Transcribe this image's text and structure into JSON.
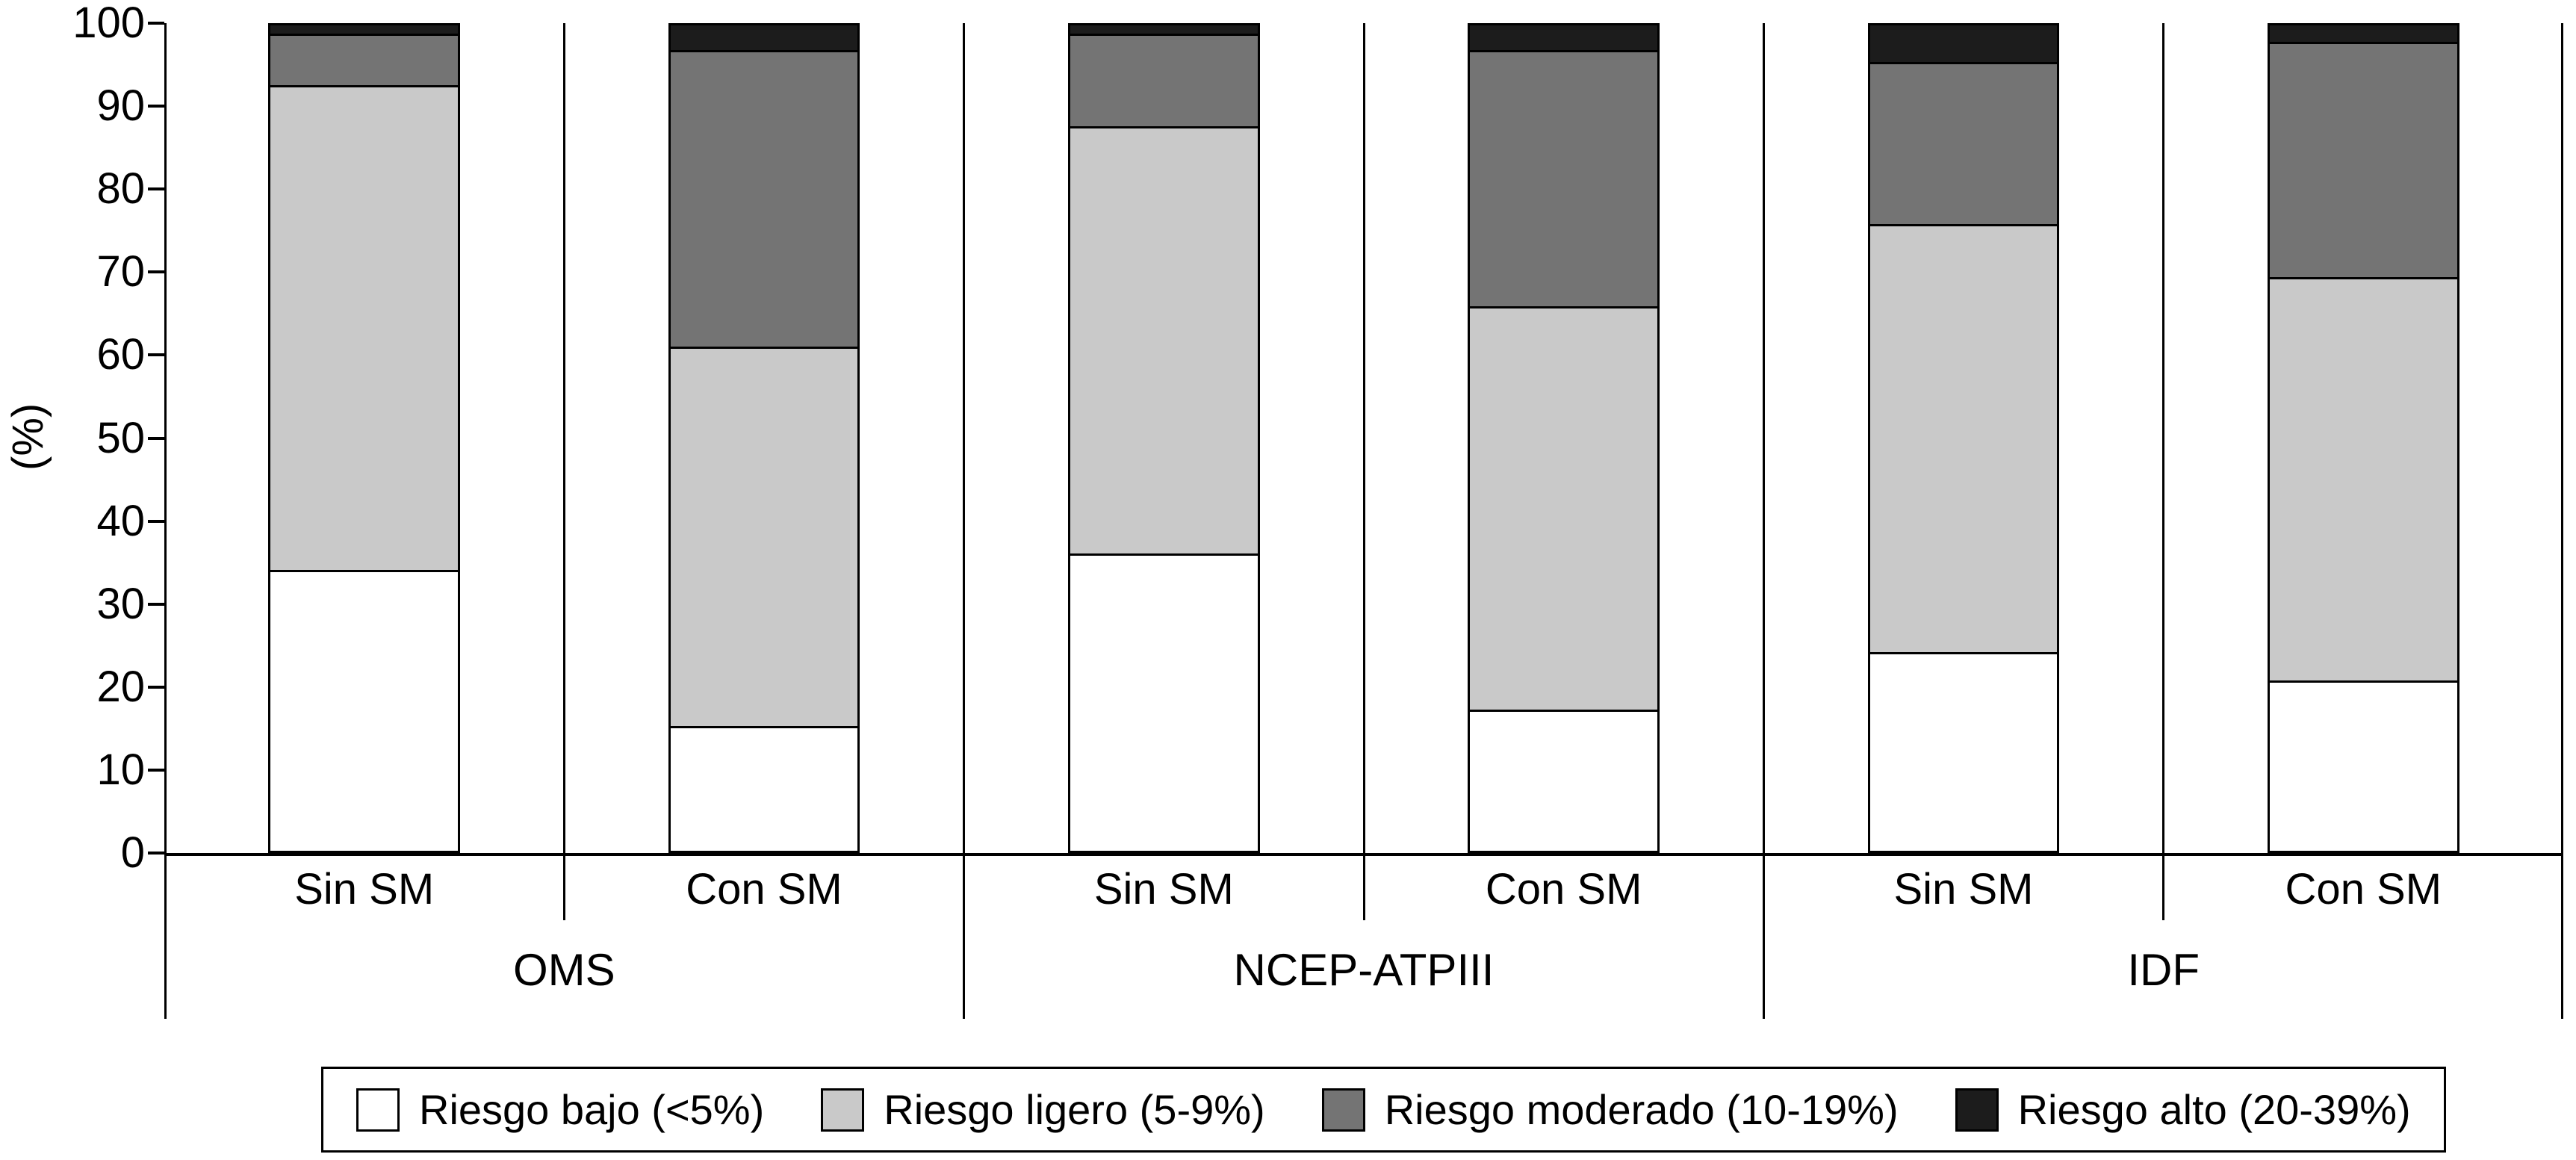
{
  "chart_data": {
    "type": "bar",
    "variant": "stacked-percent-column",
    "title": "",
    "ylabel": "(%)",
    "ylim": [
      0,
      100
    ],
    "yticks": [
      0,
      10,
      20,
      30,
      40,
      50,
      60,
      70,
      80,
      90,
      100
    ],
    "grid": false,
    "legend_position": "bottom",
    "categories": [
      "Sin SM",
      "Con SM",
      "Sin SM",
      "Con SM",
      "Sin SM",
      "Con SM"
    ],
    "groups": [
      {
        "label": "OMS",
        "span": 2
      },
      {
        "label": "NCEP-ATPIII",
        "span": 2
      },
      {
        "label": "IDF",
        "span": 2
      }
    ],
    "series": [
      {
        "name": "Riesgo bajo (<5%)",
        "color": "#ffffff",
        "values": [
          34,
          15,
          36,
          17,
          24,
          20.5
        ]
      },
      {
        "name": "Riesgo ligero (5-9%)",
        "color": "#c9c9c9",
        "values": [
          59,
          46,
          52,
          49,
          52,
          49
        ]
      },
      {
        "name": "Riesgo moderado (10-19%)",
        "color": "#747474",
        "values": [
          6,
          36,
          11,
          31,
          19.5,
          28.5
        ]
      },
      {
        "name": "Riesgo alto (20-39%)",
        "color": "#1c1c1c",
        "values": [
          1,
          3,
          1,
          3,
          4.5,
          2
        ]
      }
    ],
    "axis_color": "#000000"
  }
}
